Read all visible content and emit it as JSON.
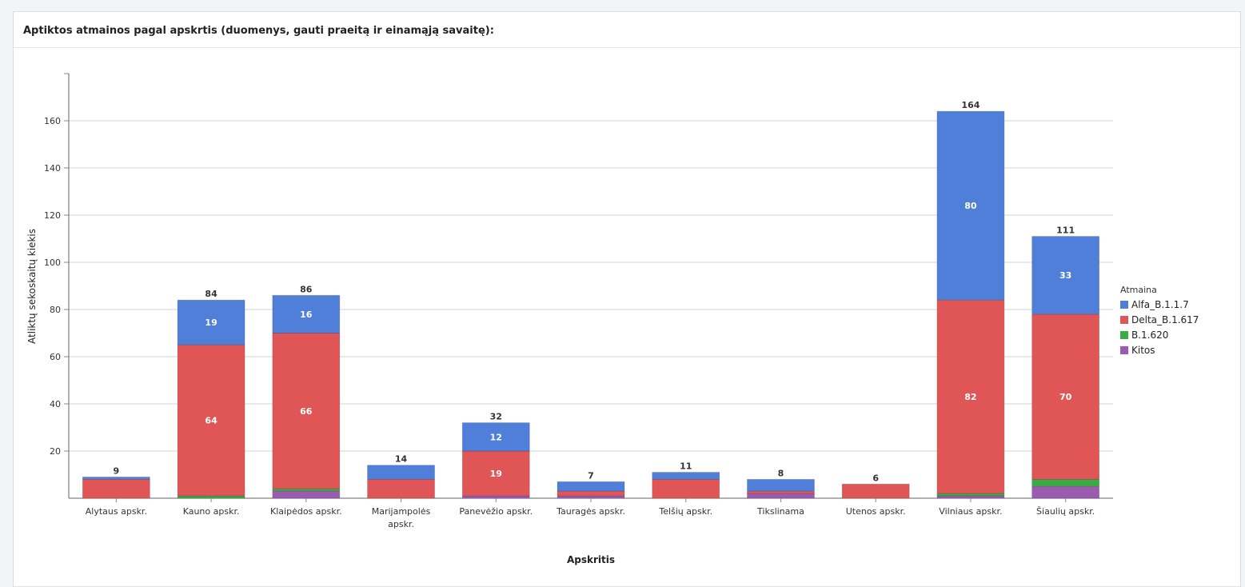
{
  "panel": {
    "title": "Aptiktos atmainos pagal apskrtis (duomenys, gauti praeitą ir einamąją savaitę):"
  },
  "chart_data": {
    "type": "bar",
    "stacked": true,
    "title": "",
    "xlabel": "Apskritis",
    "ylabel": "Atliktų sekoskaitų kiekis",
    "ylim": [
      0,
      180
    ],
    "yticks": [
      20,
      40,
      60,
      80,
      100,
      120,
      140,
      160
    ],
    "grid": true,
    "legend": {
      "title": "Atmaina",
      "position": "right"
    },
    "categories": [
      [
        "Alytaus apskr."
      ],
      [
        "Kauno apskr."
      ],
      [
        "Klaipėdos apskr."
      ],
      [
        "Marijampolės",
        "apskr."
      ],
      [
        "Panevėžio apskr."
      ],
      [
        "Tauragės apskr."
      ],
      [
        "Telšių apskr."
      ],
      [
        "Tikslinama"
      ],
      [
        "Utenos apskr."
      ],
      [
        "Vilniaus apskr."
      ],
      [
        "Šiaulių apskr."
      ]
    ],
    "series": [
      {
        "name": "Kitos",
        "color": "#9b5bb0",
        "values": [
          0,
          0,
          3,
          0,
          1,
          1,
          0,
          2,
          0,
          1,
          5
        ]
      },
      {
        "name": "B.1.620",
        "color": "#3aab45",
        "values": [
          0,
          1,
          1,
          0,
          0,
          0,
          0,
          0,
          0,
          1,
          3
        ]
      },
      {
        "name": "Delta_B.1.617",
        "color": "#e05656",
        "values": [
          8,
          64,
          66,
          8,
          19,
          2,
          8,
          1,
          6,
          82,
          70
        ]
      },
      {
        "name": "Alfa_B.1.1.7",
        "color": "#4f7fd8",
        "values": [
          1,
          19,
          16,
          6,
          12,
          4,
          3,
          5,
          0,
          80,
          33
        ]
      }
    ],
    "legend_order": [
      "Alfa_B.1.1.7",
      "Delta_B.1.617",
      "B.1.620",
      "Kitos"
    ],
    "segment_labels": [
      {
        "category": 1,
        "series": "Delta_B.1.617",
        "text": "64"
      },
      {
        "category": 1,
        "series": "Alfa_B.1.1.7",
        "text": "19"
      },
      {
        "category": 2,
        "series": "Delta_B.1.617",
        "text": "66"
      },
      {
        "category": 2,
        "series": "Alfa_B.1.1.7",
        "text": "16"
      },
      {
        "category": 4,
        "series": "Delta_B.1.617",
        "text": "19"
      },
      {
        "category": 4,
        "series": "Alfa_B.1.1.7",
        "text": "12"
      },
      {
        "category": 9,
        "series": "Delta_B.1.617",
        "text": "82"
      },
      {
        "category": 9,
        "series": "Alfa_B.1.1.7",
        "text": "80"
      },
      {
        "category": 10,
        "series": "Delta_B.1.617",
        "text": "70"
      },
      {
        "category": 10,
        "series": "Alfa_B.1.1.7",
        "text": "33"
      }
    ],
    "totals": [
      9,
      84,
      86,
      14,
      32,
      7,
      11,
      8,
      6,
      164,
      111
    ]
  }
}
